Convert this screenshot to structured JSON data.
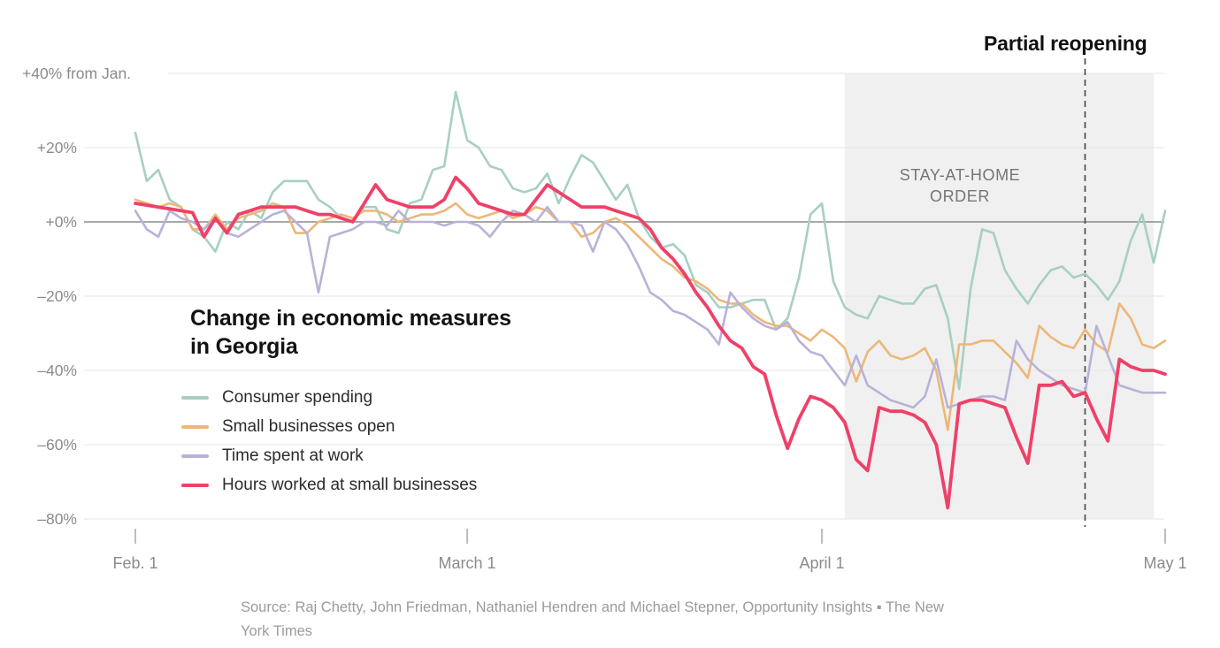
{
  "chart_data": {
    "type": "line",
    "title_line1": "Change in economic measures",
    "title_line2": "in Georgia",
    "y_axis": {
      "top_label": "+40% from Jan.",
      "tick_labels": [
        "+40% from Jan.",
        "+20%",
        "+0%",
        "–20%",
        "–40%",
        "–60%",
        "–80%"
      ],
      "tick_values": [
        40,
        20,
        0,
        -20,
        -40,
        -60,
        -80
      ],
      "ylim": [
        -80,
        40
      ],
      "grid": "on",
      "zero_line": "on"
    },
    "x_axis": {
      "ticks": [
        {
          "label": "Feb. 1",
          "day": 0
        },
        {
          "label": "March 1",
          "day": 29
        },
        {
          "label": "April 1",
          "day": 60
        },
        {
          "label": "May 1",
          "day": 90
        }
      ],
      "days_total": 90,
      "cadence": "daily"
    },
    "legend_position": "inside-left-middle",
    "series": [
      {
        "name": "Consumer spending",
        "color": "#a7cfc2",
        "line_width": 2.6,
        "values": [
          24,
          11,
          14,
          6,
          4,
          -2,
          -4,
          -8,
          0,
          -2,
          3,
          1,
          8,
          11,
          11,
          11,
          6,
          4,
          1,
          0,
          4,
          4,
          -2,
          -3,
          5,
          6,
          14,
          15,
          35,
          22,
          20,
          15,
          14,
          9,
          8,
          9,
          13,
          5,
          12,
          18,
          16,
          11,
          6,
          10,
          1,
          -4,
          -7,
          -6,
          -9,
          -17,
          -19,
          -23,
          -23,
          -22,
          -21,
          -21,
          -29,
          -26,
          -15,
          2,
          5,
          -16,
          -23,
          -25,
          -26,
          -20,
          -21,
          -22,
          -22,
          -18,
          -17,
          -26,
          -45,
          -18,
          -2,
          -3,
          -13,
          -18,
          -22,
          -17,
          -13,
          -12,
          -15,
          -14,
          -17,
          -21,
          -16,
          -5,
          2,
          -11,
          3
        ]
      },
      {
        "name": "Small businesses open",
        "color": "#edb778",
        "line_width": 2.6,
        "values": [
          6,
          5,
          4,
          5,
          4,
          -2,
          -2,
          2,
          -2,
          1,
          2,
          3,
          5,
          4,
          -3,
          -3,
          0,
          1,
          2,
          1,
          3,
          3,
          2,
          0,
          1,
          2,
          2,
          3,
          5,
          2,
          1,
          2,
          3,
          1,
          2,
          4,
          3,
          0,
          0,
          -4,
          -3,
          0,
          1,
          -1,
          -4,
          -7,
          -10,
          -12,
          -15,
          -16,
          -18,
          -21,
          -22,
          -22,
          -25,
          -27,
          -28,
          -28,
          -30,
          -32,
          -29,
          -31,
          -34,
          -43,
          -35,
          -32,
          -36,
          -37,
          -36,
          -34,
          -40,
          -56,
          -33,
          -33,
          -32,
          -32,
          -35,
          -38,
          -42,
          -28,
          -31,
          -33,
          -34,
          -29,
          -33,
          -35,
          -22,
          -26,
          -33,
          -34,
          -32
        ]
      },
      {
        "name": "Time spent at work",
        "color": "#b8b2d9",
        "line_width": 2.6,
        "values": [
          3,
          -2,
          -4,
          3,
          1,
          0,
          -2,
          1,
          -3,
          -4,
          -2,
          0,
          2,
          3,
          0,
          -3,
          -19,
          -4,
          -3,
          -2,
          0,
          0,
          -1,
          3,
          0,
          0,
          0,
          -1,
          0,
          0,
          -1,
          -4,
          0,
          3,
          2,
          0,
          4,
          0,
          0,
          -1,
          -8,
          0,
          -2,
          -6,
          -12,
          -19,
          -21,
          -24,
          -25,
          -27,
          -29,
          -33,
          -19,
          -23,
          -26,
          -28,
          -29,
          -27,
          -32,
          -35,
          -36,
          -40,
          -44,
          -36,
          -44,
          -46,
          -48,
          -49,
          -50,
          -47,
          -37,
          -50,
          -49,
          -48,
          -47,
          -47,
          -48,
          -32,
          -37,
          -40,
          -42,
          -44,
          -45,
          -46,
          -28,
          -36,
          -44,
          -45,
          -46,
          -46,
          -46
        ]
      },
      {
        "name": "Hours worked at small businesses",
        "color": "#ef4168",
        "line_width": 3.8,
        "values": [
          5,
          4.5,
          4,
          3.5,
          3,
          2.5,
          -4,
          1,
          -3,
          2,
          3,
          4,
          4,
          4,
          4,
          3,
          2,
          2,
          1,
          0,
          5,
          10,
          6,
          5,
          4,
          4,
          4,
          6,
          12,
          9,
          5,
          4,
          3,
          2,
          2,
          6,
          10,
          8,
          6,
          4,
          4,
          4,
          3,
          2,
          1,
          -2,
          -7,
          -10,
          -14,
          -19,
          -23,
          -28,
          -32,
          -34,
          -39,
          -41,
          -52,
          -61,
          -53,
          -47,
          -48,
          -50,
          -54,
          -64,
          -67,
          -50,
          -51,
          -51,
          -52,
          -54,
          -60,
          -77,
          -49,
          -48,
          -48,
          -49,
          -50,
          -58,
          -65,
          -44,
          -44,
          -43,
          -47,
          -46,
          -53,
          -59,
          -37,
          -39,
          -40,
          -40,
          -41
        ]
      }
    ],
    "annotations": {
      "shaded_region": {
        "label_line1": "STAY-AT-HOME",
        "label_line2": "ORDER",
        "start_day": 62,
        "end_day": 89,
        "fill": "#f0f0f0"
      },
      "event_line": {
        "label": "Partial reopening",
        "day": 83,
        "style": "dashed",
        "color": "#444444"
      }
    },
    "colors": {
      "gridline": "#e6e6e6",
      "zero_line": "#8c8c8c",
      "tick_mark": "#a8a8a8"
    }
  },
  "source": {
    "text": "Source: Raj Chetty, John Friedman, Nathaniel Hendren and Michael Stepner, Opportunity Insights ▪ The New York Times"
  }
}
